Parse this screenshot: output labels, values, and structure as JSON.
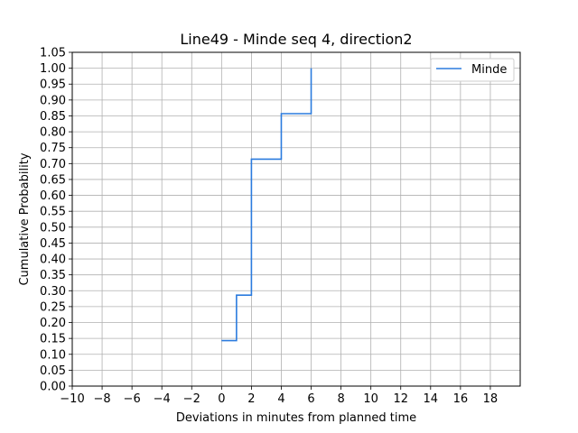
{
  "chart_data": {
    "type": "line",
    "step": "post",
    "title": "Line49 - Minde seq 4, direction2",
    "xlabel": "Deviations in minutes from planned time",
    "ylabel": "Cumulative Probability",
    "xlim": [
      -10,
      20
    ],
    "ylim": [
      0,
      1.05
    ],
    "xticks": [
      -10,
      -8,
      -6,
      -4,
      -2,
      0,
      2,
      4,
      6,
      8,
      10,
      12,
      14,
      16,
      18
    ],
    "xtick_labels": [
      "−10",
      "−8",
      "−6",
      "−4",
      "−2",
      "0",
      "2",
      "4",
      "6",
      "8",
      "10",
      "12",
      "14",
      "16",
      "18"
    ],
    "yticks": [
      0,
      0.05,
      0.1,
      0.15,
      0.2,
      0.25,
      0.3,
      0.35,
      0.4,
      0.45,
      0.5,
      0.55,
      0.6,
      0.65,
      0.7,
      0.75,
      0.8,
      0.85,
      0.9,
      0.95,
      1.0,
      1.05
    ],
    "ytick_labels": [
      "0.00",
      "0.05",
      "0.10",
      "0.15",
      "0.20",
      "0.25",
      "0.30",
      "0.35",
      "0.40",
      "0.45",
      "0.50",
      "0.55",
      "0.60",
      "0.65",
      "0.70",
      "0.75",
      "0.80",
      "0.85",
      "0.90",
      "0.95",
      "1.00",
      "1.05"
    ],
    "grid": true,
    "legend_position": "top-right",
    "series": [
      {
        "name": "Minde",
        "color": "#2b7bde",
        "x": [
          0,
          1,
          2,
          4,
          6
        ],
        "y": [
          0.143,
          0.286,
          0.714,
          0.857,
          1.0
        ]
      }
    ]
  }
}
